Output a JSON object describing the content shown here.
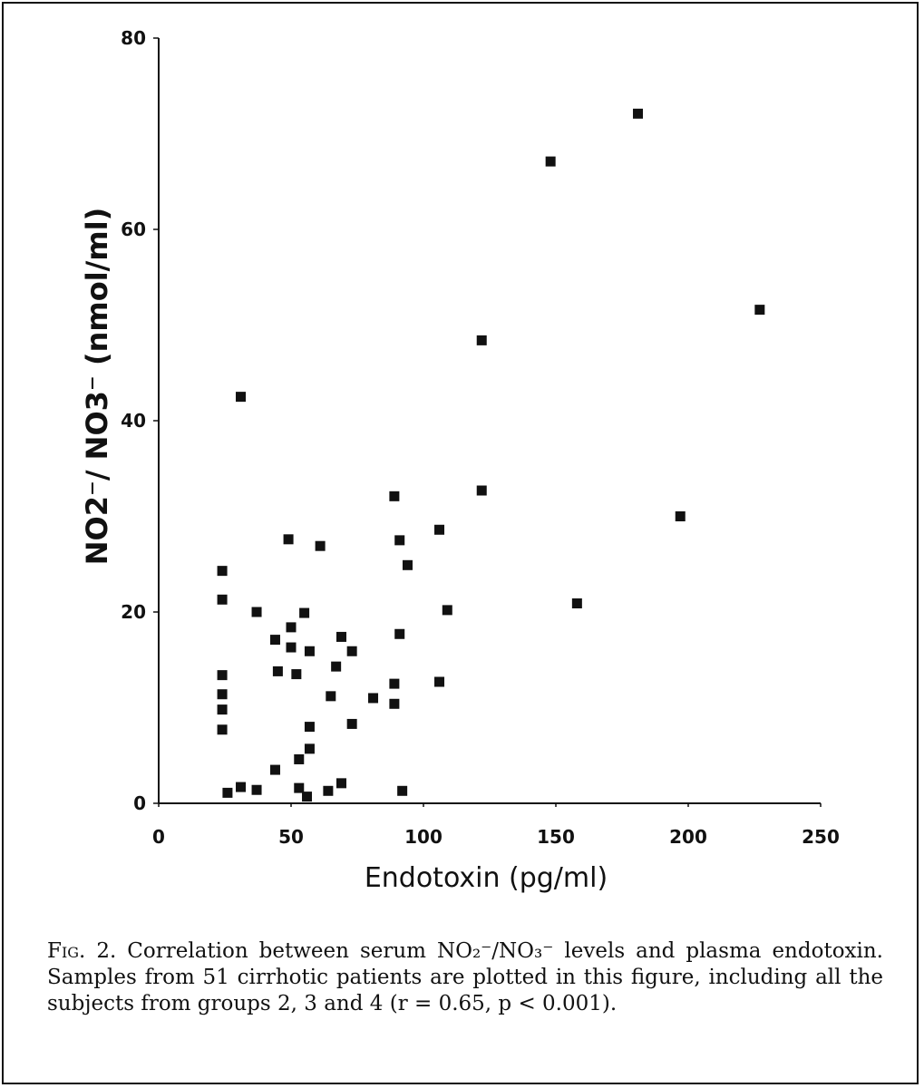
{
  "chart_data": {
    "type": "scatter",
    "title": "",
    "xlabel": "Endotoxin (pg/ml)",
    "ylabel": "NO2⁻/ NO3⁻ (nmol/ml)",
    "xlim": [
      0,
      250
    ],
    "ylim": [
      0,
      80
    ],
    "xticks": [
      0,
      50,
      100,
      150,
      200,
      250
    ],
    "yticks": [
      0,
      20,
      40,
      60,
      80
    ],
    "grid": false,
    "marker": "square",
    "color": "#111111",
    "points": [
      {
        "x": 24,
        "y": 24.3
      },
      {
        "x": 24,
        "y": 21.3
      },
      {
        "x": 24,
        "y": 13.4
      },
      {
        "x": 24,
        "y": 11.4
      },
      {
        "x": 24,
        "y": 9.8
      },
      {
        "x": 24,
        "y": 7.7
      },
      {
        "x": 26,
        "y": 1.1
      },
      {
        "x": 31,
        "y": 1.7
      },
      {
        "x": 31,
        "y": 42.5
      },
      {
        "x": 37,
        "y": 20.0
      },
      {
        "x": 37,
        "y": 1.4
      },
      {
        "x": 44,
        "y": 17.1
      },
      {
        "x": 44,
        "y": 3.5
      },
      {
        "x": 45,
        "y": 13.8
      },
      {
        "x": 49,
        "y": 27.6
      },
      {
        "x": 50,
        "y": 18.4
      },
      {
        "x": 50,
        "y": 16.3
      },
      {
        "x": 52,
        "y": 13.5
      },
      {
        "x": 53,
        "y": 4.6
      },
      {
        "x": 53,
        "y": 1.6
      },
      {
        "x": 55,
        "y": 19.9
      },
      {
        "x": 56,
        "y": 0.7
      },
      {
        "x": 57,
        "y": 8.0
      },
      {
        "x": 57,
        "y": 15.9
      },
      {
        "x": 57,
        "y": 5.7
      },
      {
        "x": 61,
        "y": 26.9
      },
      {
        "x": 64,
        "y": 1.3
      },
      {
        "x": 65,
        "y": 11.2
      },
      {
        "x": 67,
        "y": 14.3
      },
      {
        "x": 69,
        "y": 2.1
      },
      {
        "x": 69,
        "y": 17.4
      },
      {
        "x": 73,
        "y": 15.9
      },
      {
        "x": 73,
        "y": 8.3
      },
      {
        "x": 81,
        "y": 11.0
      },
      {
        "x": 89,
        "y": 32.1
      },
      {
        "x": 89,
        "y": 12.5
      },
      {
        "x": 89,
        "y": 10.4
      },
      {
        "x": 91,
        "y": 27.5
      },
      {
        "x": 91,
        "y": 17.7
      },
      {
        "x": 92,
        "y": 1.3
      },
      {
        "x": 94,
        "y": 24.9
      },
      {
        "x": 106,
        "y": 28.6
      },
      {
        "x": 106,
        "y": 12.7
      },
      {
        "x": 109,
        "y": 20.2
      },
      {
        "x": 122,
        "y": 48.4
      },
      {
        "x": 122,
        "y": 32.7
      },
      {
        "x": 148,
        "y": 67.1
      },
      {
        "x": 158,
        "y": 20.9
      },
      {
        "x": 181,
        "y": 72.1
      },
      {
        "x": 197,
        "y": 30.0
      },
      {
        "x": 227,
        "y": 51.6
      }
    ]
  },
  "caption": {
    "fig_label": "Fig. 2.",
    "text": " Correlation between serum NO₂⁻/NO₃⁻ levels and plasma endotoxin. Samples from 51 cirrhotic patients are plotted in this figure, including all the subjects from groups 2, 3 and 4 (r = 0.65, p < 0.001)."
  }
}
